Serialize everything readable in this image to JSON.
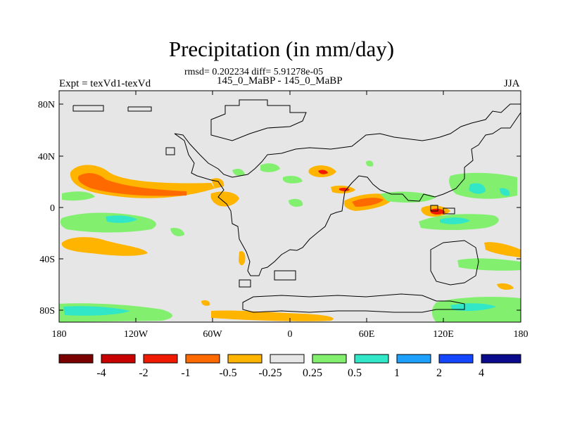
{
  "title": "Precipitation (in mm/day)",
  "stats_line": "rmsd= 0.202234  diff= 5.91278e-05",
  "case_line": "145_0_MaBP - 145_0_MaBP",
  "expt_label": "Expt = texVd1-texVd",
  "season": "JJA",
  "lat_labels": [
    "80N",
    "40N",
    "0",
    "40S",
    "80S"
  ],
  "lon_labels": [
    "180",
    "120W",
    "60W",
    "0",
    "60E",
    "120E",
    "180"
  ],
  "colorbar": {
    "colors": [
      "#7a0000",
      "#c80000",
      "#f01a00",
      "#ff6a00",
      "#ffb400",
      "#e6e6e6",
      "#82f06e",
      "#32e6c8",
      "#1ea0ff",
      "#1446ff",
      "#0a0a8c"
    ],
    "labels": [
      "-4",
      "-2",
      "-1",
      "-0.5",
      "-0.25",
      "0.25",
      "0.5",
      "1",
      "2",
      "4"
    ]
  },
  "colors": {
    "ocean_bg": "#e6e6e6",
    "pos_orange": "#ffb400",
    "pos_deep_orange": "#ff6a00",
    "pos_red": "#f01a00",
    "neg_green": "#82f06e",
    "neg_cyan": "#32e6c8",
    "neg_blue": "#1ea0ff",
    "coast": "#000000"
  }
}
